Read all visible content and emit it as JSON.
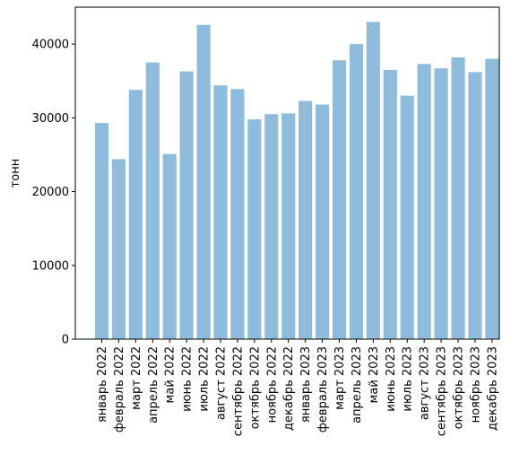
{
  "chart_data": {
    "type": "bar",
    "title": "",
    "xlabel": "",
    "ylabel": "тонн",
    "ylim": [
      0,
      45000
    ],
    "yticks": [
      0,
      10000,
      20000,
      30000,
      40000
    ],
    "ytick_labels": [
      "0",
      "10000",
      "20000",
      "30000",
      "40000"
    ],
    "grid": false,
    "bar_color": "#8fbbdc",
    "categories": [
      "январь 2022",
      "февраль 2022",
      "март 2022",
      "апрель 2022",
      "май 2022",
      "июнь 2022",
      "июль 2022",
      "август 2022",
      "сентябрь 2022",
      "октябрь 2022",
      "ноябрь 2022",
      "декабрь 2022",
      "январь 2023",
      "февраль 2023",
      "март 2023",
      "апрель 2023",
      "май 2023",
      "июнь 2023",
      "июль 2023",
      "август 2023",
      "сентябрь 2023",
      "октябрь 2023",
      "ноябрь 2023",
      "декабрь 2023"
    ],
    "values": [
      29300,
      24400,
      33800,
      37500,
      25100,
      36300,
      42600,
      34400,
      33900,
      29800,
      30500,
      30600,
      32300,
      31800,
      37800,
      40000,
      43000,
      36500,
      33000,
      37300,
      36700,
      38200,
      36200,
      38000
    ]
  }
}
